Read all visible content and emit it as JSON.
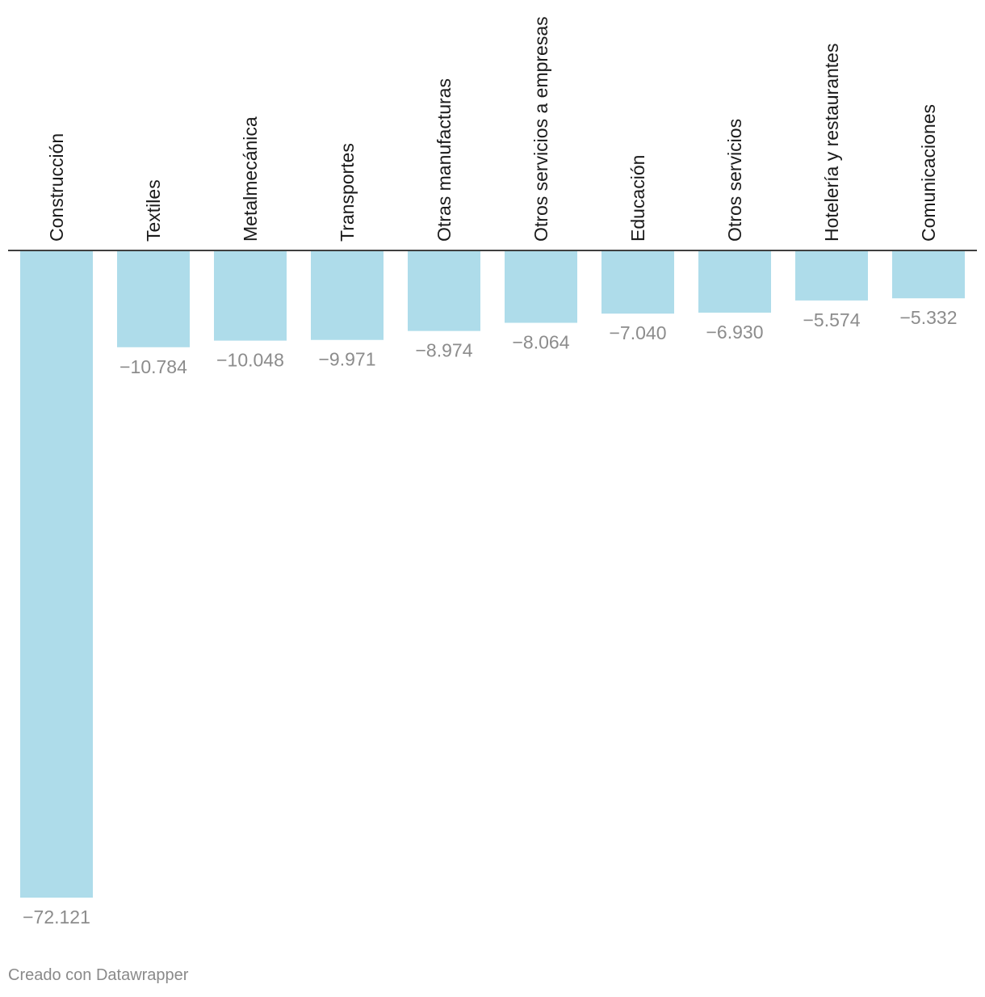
{
  "chart_data": {
    "type": "bar",
    "categories": [
      "Construcción",
      "Textiles",
      "Metalmecánica",
      "Transportes",
      "Otras manufacturas",
      "Otros servicios a empresas",
      "Educación",
      "Otros servicios",
      "Hotelería y restaurantes",
      "Comunicaciones"
    ],
    "values": [
      -72121,
      -10784,
      -10048,
      -9971,
      -8974,
      -8064,
      -7040,
      -6930,
      -5574,
      -5332
    ],
    "value_labels": [
      "−72.121",
      "−10.784",
      "−10.048",
      "−9.971",
      "−8.974",
      "−8.064",
      "−7.040",
      "−6.930",
      "−5.574",
      "−5.332"
    ],
    "bar_color": "#aedcea",
    "baseline_color": "#000000",
    "ylim": [
      -72121,
      0
    ],
    "grid": false,
    "legend": "none",
    "category_label_orientation": "vertical"
  },
  "footer": {
    "credit": "Creado con Datawrapper"
  }
}
